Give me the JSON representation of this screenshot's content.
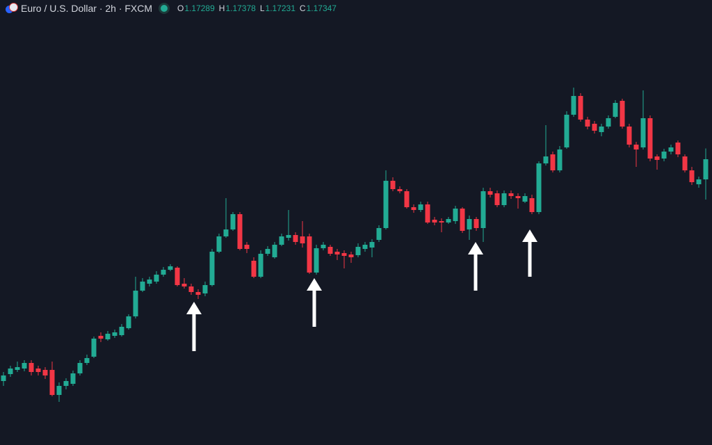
{
  "chart_data": {
    "type": "candlestick",
    "title": "Euro / U.S. Dollar · 2h · FXCM",
    "ohlc_labels": [
      "O",
      "H",
      "L",
      "C"
    ],
    "up_color": "#22ab94",
    "down_color": "#f23645",
    "ylim": [
      1.16525,
      1.17805
    ],
    "open": [
      1.16709,
      1.16729,
      1.16741,
      1.16745,
      1.16761,
      1.16745,
      1.16741,
      1.16741,
      1.16669,
      1.16695,
      1.16701,
      1.16731,
      1.16761,
      1.16779,
      1.16839,
      1.16829,
      1.16839,
      1.16841,
      1.16861,
      1.16895,
      1.16969,
      1.16989,
      1.16995,
      1.17015,
      1.17029,
      1.17035,
      1.16989,
      1.16981,
      1.16965,
      1.16961,
      1.16985,
      1.17081,
      1.17125,
      1.17145,
      1.17189,
      1.17101,
      1.17055,
      1.17009,
      1.17075,
      1.17065,
      1.17101,
      1.17121,
      1.17129,
      1.17125,
      1.17125,
      1.17021,
      1.17091,
      1.17095,
      1.17081,
      1.17077,
      1.17073,
      1.17071,
      1.17089,
      1.17093,
      1.17115,
      1.17149,
      1.17285,
      1.17261,
      1.17255,
      1.17209,
      1.17201,
      1.17217,
      1.17173,
      1.17169,
      1.17165,
      1.17169,
      1.17205,
      1.17145,
      1.17175,
      1.17149,
      1.17255,
      1.17249,
      1.17215,
      1.17249,
      1.17241,
      1.17225,
      1.17235,
      1.17195,
      1.17335,
      1.17361,
      1.17315,
      1.17381,
      1.17475,
      1.17529,
      1.17461,
      1.17449,
      1.17425,
      1.17441,
      1.17469,
      1.17515,
      1.17441,
      1.17389,
      1.17381,
      1.17465,
      1.17355,
      1.17349,
      1.17369,
      1.17395,
      1.17355,
      1.17315,
      1.17275,
      1.17289
    ],
    "high": [
      1.16735,
      1.16753,
      1.16765,
      1.16769,
      1.16769,
      1.16753,
      1.16749,
      1.16765,
      1.16705,
      1.16717,
      1.16739,
      1.16769,
      1.16785,
      1.16837,
      1.16849,
      1.16853,
      1.16857,
      1.16873,
      1.16901,
      1.17009,
      1.17005,
      1.17009,
      1.17025,
      1.17037,
      1.17045,
      1.17039,
      1.17005,
      1.16989,
      1.16973,
      1.16995,
      1.17089,
      1.17133,
      1.17235,
      1.17195,
      1.17195,
      1.17109,
      1.17065,
      1.17085,
      1.17097,
      1.17109,
      1.17133,
      1.17201,
      1.17137,
      1.17169,
      1.17133,
      1.17101,
      1.17109,
      1.17101,
      1.17089,
      1.17085,
      1.17081,
      1.17105,
      1.17109,
      1.17117,
      1.17157,
      1.17315,
      1.17295,
      1.17269,
      1.17261,
      1.17217,
      1.17225,
      1.17225,
      1.17181,
      1.17177,
      1.17181,
      1.17213,
      1.17209,
      1.17185,
      1.17181,
      1.17265,
      1.17265,
      1.17257,
      1.17257,
      1.17257,
      1.17249,
      1.17249,
      1.17245,
      1.17341,
      1.17445,
      1.17369,
      1.17385,
      1.17485,
      1.17553,
      1.17537,
      1.17469,
      1.17457,
      1.17449,
      1.17473,
      1.17517,
      1.17521,
      1.17449,
      1.17397,
      1.17545,
      1.17473,
      1.17361,
      1.17377,
      1.17389,
      1.17401,
      1.17361,
      1.17325,
      1.17297,
      1.17378
    ],
    "low": [
      1.16695,
      1.16721,
      1.16735,
      1.16737,
      1.16725,
      1.16725,
      1.16715,
      1.16665,
      1.16649,
      1.16685,
      1.16695,
      1.16725,
      1.16755,
      1.16775,
      1.16821,
      1.16825,
      1.16833,
      1.16837,
      1.16857,
      1.16889,
      1.16965,
      1.16981,
      1.16989,
      1.17009,
      1.17025,
      1.16981,
      1.16975,
      1.16957,
      1.16945,
      1.16953,
      1.16981,
      1.17077,
      1.17121,
      1.17141,
      1.17085,
      1.17077,
      1.17005,
      1.17005,
      1.17069,
      1.17061,
      1.17097,
      1.17113,
      1.17101,
      1.17093,
      1.17017,
      1.17015,
      1.17085,
      1.17069,
      1.17057,
      1.17033,
      1.17049,
      1.17065,
      1.17081,
      1.17065,
      1.17109,
      1.17145,
      1.17255,
      1.17249,
      1.17205,
      1.17193,
      1.17195,
      1.17161,
      1.17157,
      1.17137,
      1.17161,
      1.17161,
      1.17135,
      1.17115,
      1.17141,
      1.17109,
      1.17237,
      1.17209,
      1.17209,
      1.17233,
      1.17205,
      1.17221,
      1.17189,
      1.17189,
      1.17329,
      1.17309,
      1.17309,
      1.17377,
      1.17469,
      1.17455,
      1.17433,
      1.17421,
      1.17413,
      1.17435,
      1.17465,
      1.17435,
      1.17381,
      1.17325,
      1.17375,
      1.17341,
      1.17317,
      1.17341,
      1.17361,
      1.17353,
      1.17309,
      1.17273,
      1.17265,
      1.17231
    ],
    "close": [
      1.16725,
      1.16745,
      1.16749,
      1.16761,
      1.16735,
      1.16735,
      1.16725,
      1.16669,
      1.16695,
      1.16709,
      1.16731,
      1.16761,
      1.16775,
      1.16831,
      1.16831,
      1.16845,
      1.16849,
      1.16865,
      1.16895,
      1.16969,
      1.16995,
      1.17001,
      1.17015,
      1.17029,
      1.17039,
      1.16985,
      1.16981,
      1.16965,
      1.16957,
      1.16985,
      1.17081,
      1.17125,
      1.17145,
      1.17189,
      1.17089,
      1.17089,
      1.17009,
      1.17075,
      1.17089,
      1.17101,
      1.17125,
      1.17129,
      1.17109,
      1.17105,
      1.17021,
      1.17091,
      1.17101,
      1.17075,
      1.17073,
      1.17069,
      1.17065,
      1.17095,
      1.17101,
      1.17109,
      1.17149,
      1.17285,
      1.17261,
      1.17255,
      1.17209,
      1.17201,
      1.17217,
      1.17165,
      1.17165,
      1.17165,
      1.17175,
      1.17205,
      1.17141,
      1.17175,
      1.17149,
      1.17255,
      1.17245,
      1.17215,
      1.17249,
      1.17241,
      1.17235,
      1.17241,
      1.17195,
      1.17335,
      1.17355,
      1.17315,
      1.17375,
      1.17475,
      1.17529,
      1.17461,
      1.17441,
      1.17429,
      1.17441,
      1.17465,
      1.17509,
      1.17441,
      1.17389,
      1.17375,
      1.17465,
      1.17349,
      1.17345,
      1.17369,
      1.17381,
      1.17361,
      1.17315,
      1.17281,
      1.17289,
      1.17347
    ]
  }
}
